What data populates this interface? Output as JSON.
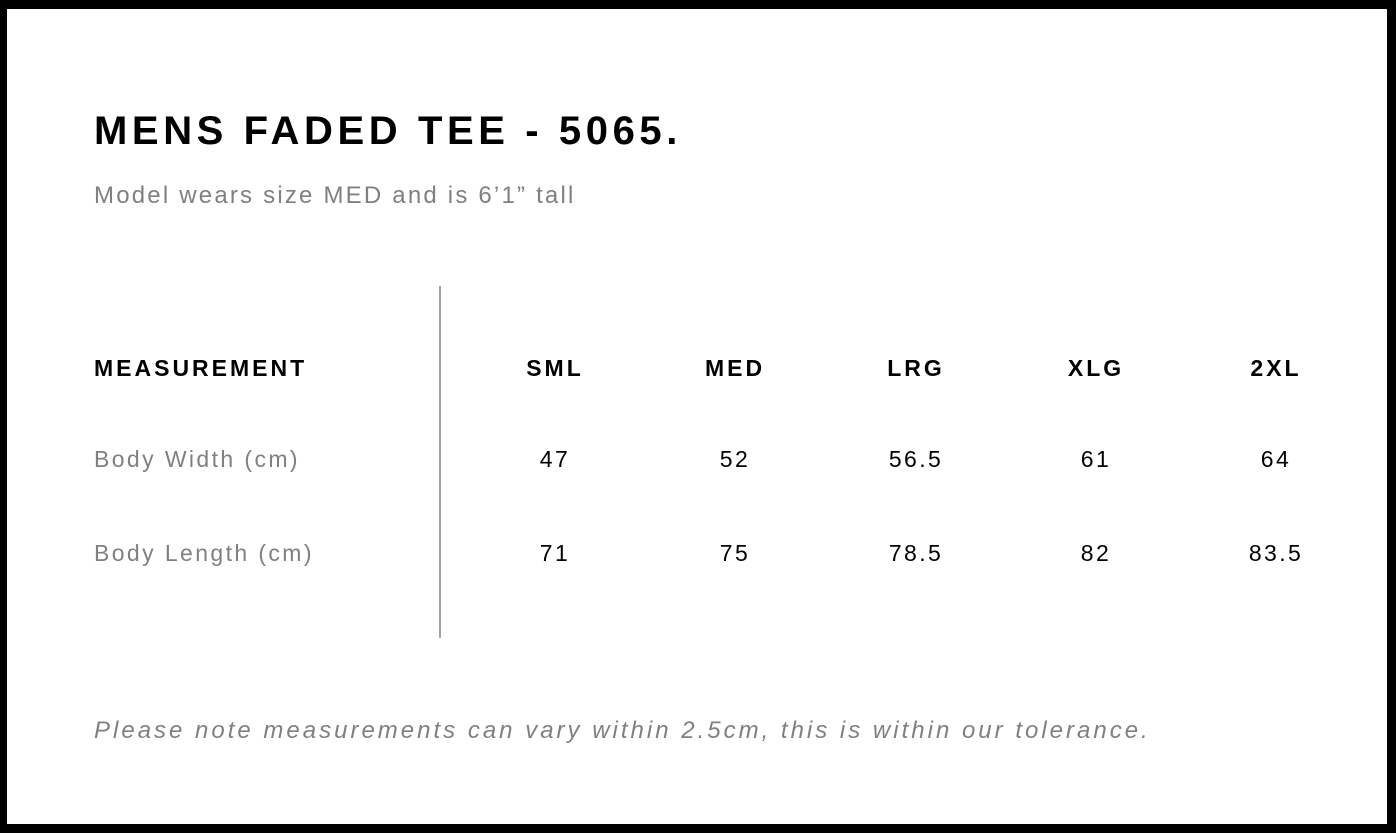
{
  "title": "MENS FADED TEE - 5065.",
  "subtitle": "Model wears size MED and is 6’1” tall",
  "table": {
    "header": "MEASUREMENT",
    "sizes": [
      "SML",
      "MED",
      "LRG",
      "XLG",
      "2XL"
    ],
    "rows": [
      {
        "label": "Body Width (cm)",
        "values": [
          "47",
          "52",
          "56.5",
          "61",
          "64"
        ]
      },
      {
        "label": "Body Length (cm)",
        "values": [
          "71",
          "75",
          "78.5",
          "82",
          "83.5"
        ]
      }
    ]
  },
  "note": "Please note measurements can vary within 2.5cm, this is within our tolerance."
}
